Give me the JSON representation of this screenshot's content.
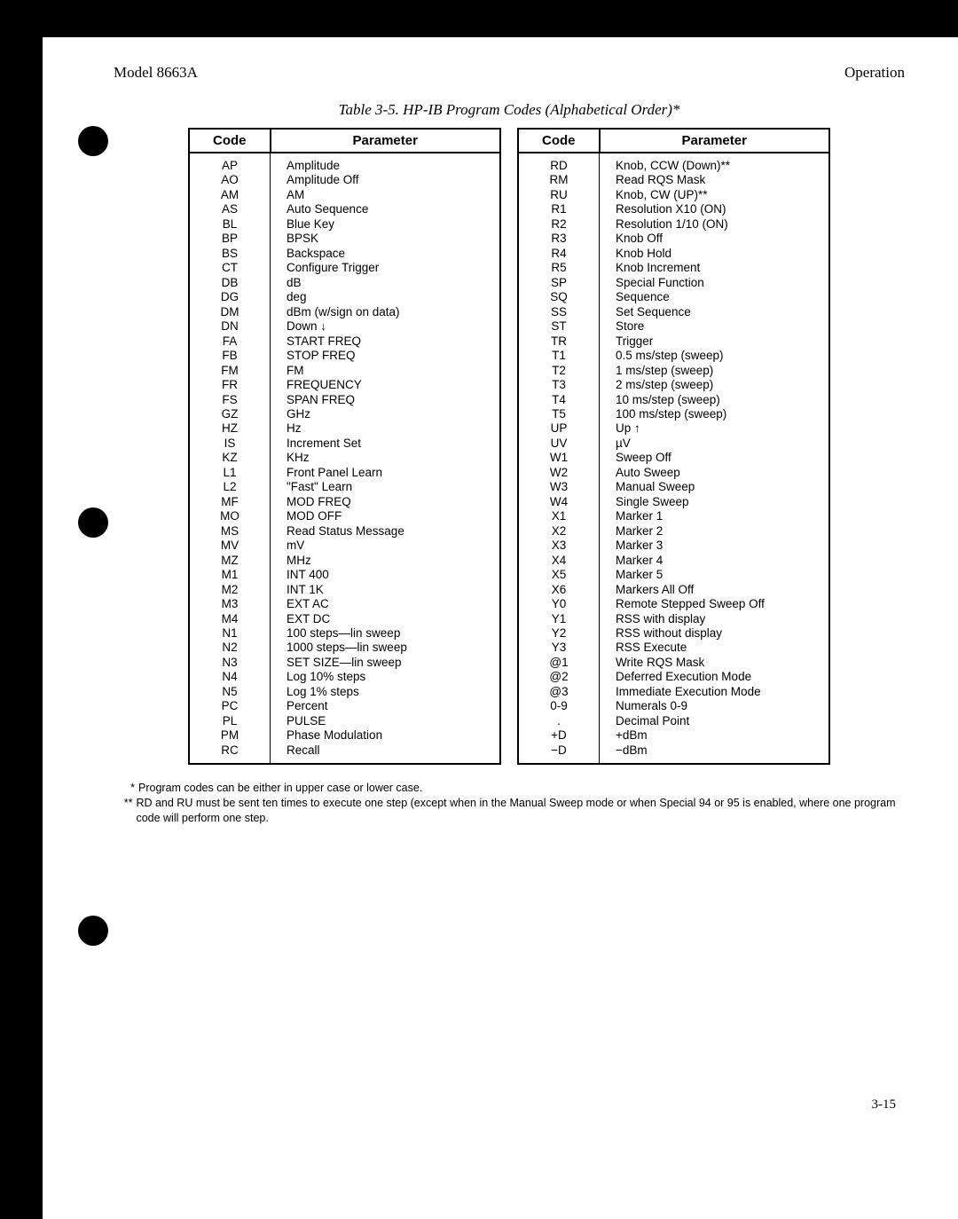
{
  "header": {
    "model": "Model 8663A",
    "section": "Operation"
  },
  "caption": "Table 3-5.  HP-IB Program Codes (Alphabetical Order)*",
  "columns": {
    "code": "Code",
    "param": "Parameter"
  },
  "left_table": [
    [
      "AP",
      "Amplitude"
    ],
    [
      "AO",
      "Amplitude Off"
    ],
    [
      "AM",
      "AM"
    ],
    [
      "AS",
      "Auto Sequence"
    ],
    [
      "BL",
      "Blue Key"
    ],
    [
      "BP",
      "BPSK"
    ],
    [
      "BS",
      "Backspace"
    ],
    [
      "CT",
      "Configure Trigger"
    ],
    [
      "DB",
      "dB"
    ],
    [
      "DG",
      "deg"
    ],
    [
      "DM",
      "dBm (w/sign on data)"
    ],
    [
      "DN",
      "Down ↓"
    ],
    [
      "FA",
      "START FREQ"
    ],
    [
      "FB",
      "STOP FREQ"
    ],
    [
      "FM",
      "FM"
    ],
    [
      "FR",
      "FREQUENCY"
    ],
    [
      "FS",
      "SPAN FREQ"
    ],
    [
      "GZ",
      "GHz"
    ],
    [
      "HZ",
      "Hz"
    ],
    [
      "IS",
      "Increment Set"
    ],
    [
      "KZ",
      "KHz"
    ],
    [
      "L1",
      "Front Panel Learn"
    ],
    [
      "L2",
      "\"Fast\" Learn"
    ],
    [
      "MF",
      "MOD FREQ"
    ],
    [
      "MO",
      "MOD OFF"
    ],
    [
      "MS",
      "Read Status Message"
    ],
    [
      "MV",
      "mV"
    ],
    [
      "MZ",
      "MHz"
    ],
    [
      "M1",
      "INT 400"
    ],
    [
      "M2",
      "INT 1K"
    ],
    [
      "M3",
      "EXT AC"
    ],
    [
      "M4",
      "EXT DC"
    ],
    [
      "N1",
      "100 steps—lin sweep"
    ],
    [
      "N2",
      "1000 steps—lin sweep"
    ],
    [
      "N3",
      "SET SIZE—lin sweep"
    ],
    [
      "N4",
      "Log 10% steps"
    ],
    [
      "N5",
      "Log 1% steps"
    ],
    [
      "PC",
      "Percent"
    ],
    [
      "PL",
      "PULSE"
    ],
    [
      "PM",
      "Phase Modulation"
    ],
    [
      "RC",
      "Recall"
    ]
  ],
  "right_table": [
    [
      "RD",
      "Knob, CCW (Down)**"
    ],
    [
      "RM",
      "Read RQS Mask"
    ],
    [
      "RU",
      "Knob, CW (UP)**"
    ],
    [
      "R1",
      "Resolution X10 (ON)"
    ],
    [
      "R2",
      "Resolution 1/10 (ON)"
    ],
    [
      "R3",
      "Knob Off"
    ],
    [
      "R4",
      "Knob Hold"
    ],
    [
      "R5",
      "Knob Increment"
    ],
    [
      "SP",
      "Special Function"
    ],
    [
      "SQ",
      "Sequence"
    ],
    [
      "SS",
      "Set Sequence"
    ],
    [
      "ST",
      "Store"
    ],
    [
      "TR",
      "Trigger"
    ],
    [
      "T1",
      "0.5 ms/step (sweep)"
    ],
    [
      "T2",
      "1 ms/step (sweep)"
    ],
    [
      "T3",
      "2 ms/step (sweep)"
    ],
    [
      "T4",
      "10 ms/step (sweep)"
    ],
    [
      "T5",
      "100 ms/step (sweep)"
    ],
    [
      "UP",
      "Up ↑"
    ],
    [
      "UV",
      "µV"
    ],
    [
      "W1",
      "Sweep Off"
    ],
    [
      "W2",
      "Auto Sweep"
    ],
    [
      "W3",
      "Manual Sweep"
    ],
    [
      "W4",
      "Single Sweep"
    ],
    [
      "X1",
      "Marker 1"
    ],
    [
      "X2",
      "Marker 2"
    ],
    [
      "X3",
      "Marker 3"
    ],
    [
      "X4",
      "Marker 4"
    ],
    [
      "X5",
      "Marker 5"
    ],
    [
      "X6",
      "Markers All Off"
    ],
    [
      "Y0",
      "Remote Stepped Sweep Off"
    ],
    [
      "Y1",
      "RSS with display"
    ],
    [
      "Y2",
      "RSS without display"
    ],
    [
      "Y3",
      "RSS Execute"
    ],
    [
      "@1",
      "Write RQS Mask"
    ],
    [
      "@2",
      "Deferred Execution Mode"
    ],
    [
      "@3",
      "Immediate Execution Mode"
    ],
    [
      "0-9",
      "Numerals 0-9"
    ],
    [
      ".",
      "Decimal Point"
    ],
    [
      "+D",
      "+dBm"
    ],
    [
      "−D",
      "−dBm"
    ]
  ],
  "footnotes": {
    "f1_mark": "*",
    "f1_text": "Program codes can be either in upper case or lower case.",
    "f2_mark": "**",
    "f2_text": "RD and RU must be sent ten times to execute one step (except when in the Manual Sweep mode or when Special 94 or 95 is enabled, where one program code will perform one step."
  },
  "page_number": "3-15"
}
